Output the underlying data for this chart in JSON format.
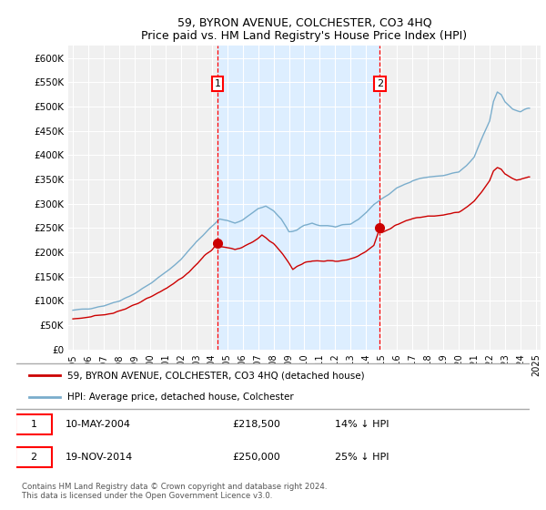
{
  "title": "59, BYRON AVENUE, COLCHESTER, CO3 4HQ",
  "subtitle": "Price paid vs. HM Land Registry's House Price Index (HPI)",
  "ytick_values": [
    0,
    50000,
    100000,
    150000,
    200000,
    250000,
    300000,
    350000,
    400000,
    450000,
    500000,
    550000,
    600000
  ],
  "ylim": [
    0,
    625000
  ],
  "xlim_start": 1994.7,
  "xlim_end": 2025.3,
  "x_tick_years": [
    1995,
    1996,
    1997,
    1998,
    1999,
    2000,
    2001,
    2002,
    2003,
    2004,
    2005,
    2006,
    2007,
    2008,
    2009,
    2010,
    2011,
    2012,
    2013,
    2014,
    2015,
    2016,
    2017,
    2018,
    2019,
    2020,
    2021,
    2022,
    2023,
    2024,
    2025
  ],
  "plot_bg_color": "#f0f0f0",
  "shade_color": "#ddeeff",
  "grid_color": "#ffffff",
  "line_red_color": "#cc0000",
  "line_blue_color": "#7aadcc",
  "sale1_x": 2004.36,
  "sale1_y": 218500,
  "sale1_label": "1",
  "sale2_x": 2014.89,
  "sale2_y": 250000,
  "sale2_label": "2",
  "legend_line1": "59, BYRON AVENUE, COLCHESTER, CO3 4HQ (detached house)",
  "legend_line2": "HPI: Average price, detached house, Colchester",
  "table_row1_num": "1",
  "table_row1_date": "10-MAY-2004",
  "table_row1_price": "£218,500",
  "table_row1_hpi": "14% ↓ HPI",
  "table_row2_num": "2",
  "table_row2_date": "19-NOV-2014",
  "table_row2_price": "£250,000",
  "table_row2_hpi": "25% ↓ HPI",
  "footer": "Contains HM Land Registry data © Crown copyright and database right 2024.\nThis data is licensed under the Open Government Licence v3.0."
}
